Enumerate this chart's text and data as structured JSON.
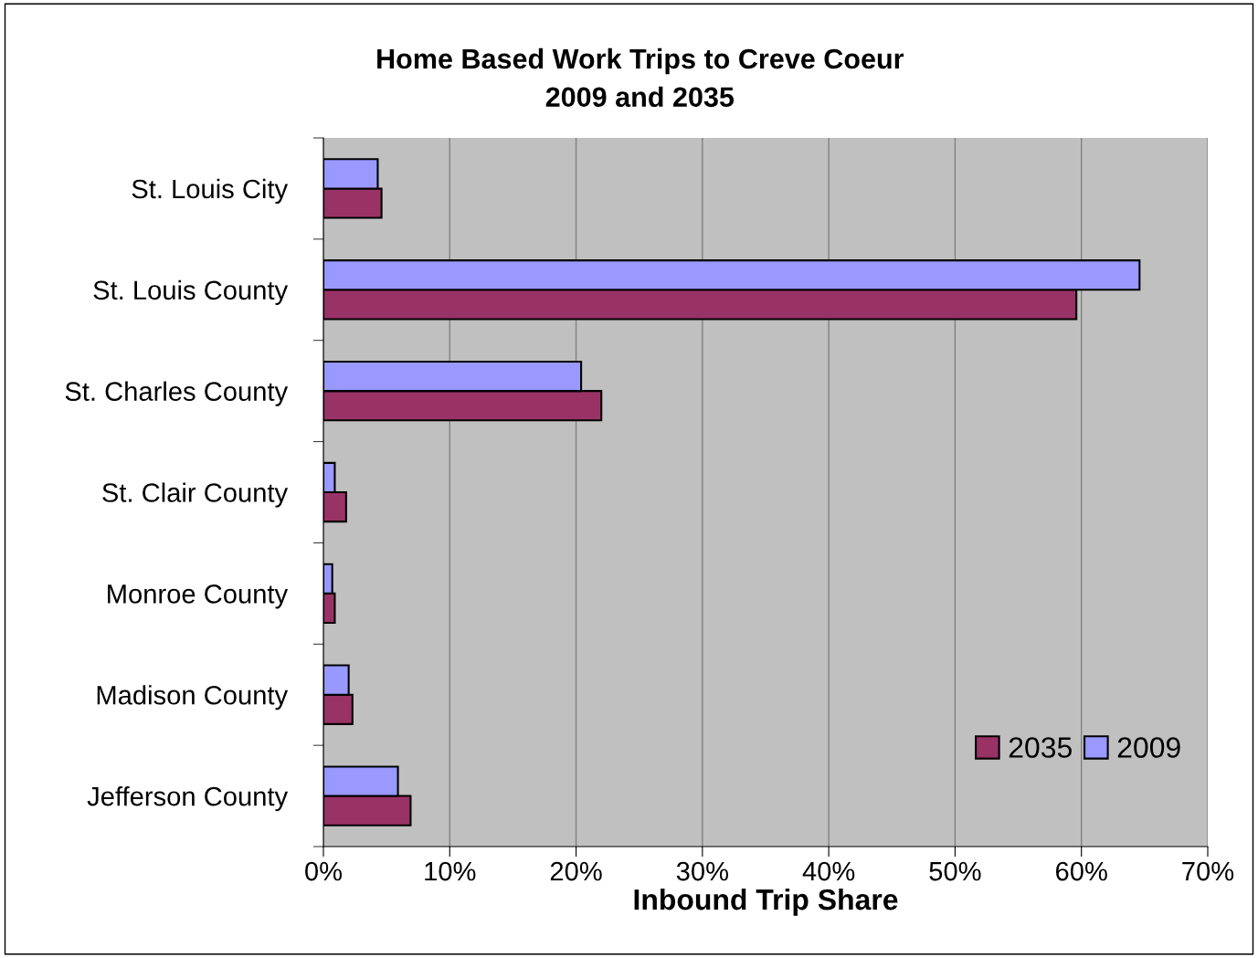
{
  "chart_data": {
    "type": "bar",
    "orientation": "horizontal",
    "title": "Home Based Work Trips to Creve Coeur\n2009 and 2035",
    "xlabel": "Inbound Trip Share",
    "categories": [
      "St. Louis City",
      "St. Louis County",
      "St. Charles County",
      "St. Clair County",
      "Monroe County",
      "Madison County",
      "Jefferson County"
    ],
    "series": [
      {
        "name": "2035",
        "color": "#993366",
        "values": [
          4.6,
          59.6,
          22.0,
          1.8,
          0.9,
          2.3,
          6.9
        ]
      },
      {
        "name": "2009",
        "color": "#9999ff",
        "values": [
          4.3,
          64.6,
          20.4,
          0.9,
          0.7,
          2.0,
          5.9
        ]
      }
    ],
    "xlim": [
      0,
      70
    ],
    "xticks": [
      {
        "value": 0,
        "label": "0%"
      },
      {
        "value": 10,
        "label": "10%"
      },
      {
        "value": 20,
        "label": "20%"
      },
      {
        "value": 30,
        "label": "30%"
      },
      {
        "value": 40,
        "label": "40%"
      },
      {
        "value": 50,
        "label": "50%"
      },
      {
        "value": 60,
        "label": "60%"
      },
      {
        "value": 70,
        "label": "70%"
      }
    ],
    "grid": "x",
    "legend": "bottom right"
  }
}
